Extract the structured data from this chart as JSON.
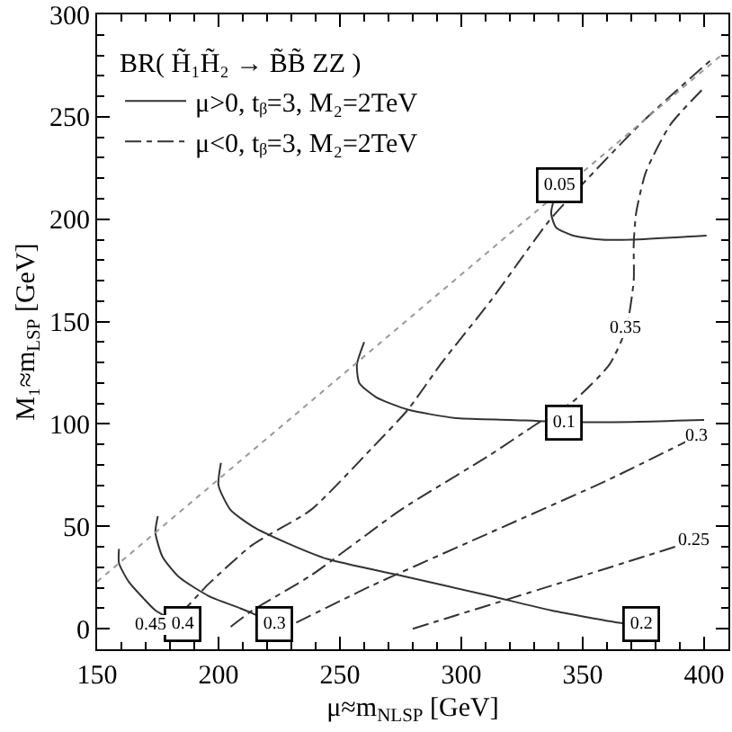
{
  "chart_data": {
    "type": "line",
    "xlabel": "μ≈m$_{NLSP}$ [GeV]",
    "ylabel": "M₁≈m$_{LSP}$ [GeV]",
    "legend_title": "BR( H̃₁H̃₂ → B̃B̃ ZZ )",
    "legend": "top left",
    "xlim": [
      150,
      410
    ],
    "ylim": [
      -10,
      300
    ],
    "xticks": [
      150,
      {
        "value": 160,
        "label": null
      },
      {
        "value": 170,
        "label": null
      },
      {
        "value": 180,
        "label": null
      },
      {
        "value": 190,
        "label": null
      },
      200,
      {
        "value": 210,
        "label": null
      },
      {
        "value": 220,
        "label": null
      },
      {
        "value": 230,
        "label": null
      },
      {
        "value": 240,
        "label": null
      },
      250,
      {
        "value": 260,
        "label": null
      },
      {
        "value": 270,
        "label": null
      },
      {
        "value": 280,
        "label": null
      },
      {
        "value": 290,
        "label": null
      },
      300,
      {
        "value": 310,
        "label": null
      },
      {
        "value": 320,
        "label": null
      },
      {
        "value": 330,
        "label": null
      },
      {
        "value": 340,
        "label": null
      },
      350,
      {
        "value": 360,
        "label": null
      },
      {
        "value": 370,
        "label": null
      },
      {
        "value": 380,
        "label": null
      },
      {
        "value": 390,
        "label": null
      },
      400
    ],
    "yticks": [
      0,
      {
        "value": 10,
        "label": null
      },
      {
        "value": 20,
        "label": null
      },
      {
        "value": 30,
        "label": null
      },
      {
        "value": 40,
        "label": null
      },
      50,
      {
        "value": 60,
        "label": null
      },
      {
        "value": 70,
        "label": null
      },
      {
        "value": 80,
        "label": null
      },
      {
        "value": 90,
        "label": null
      },
      100,
      {
        "value": 110,
        "label": null
      },
      {
        "value": 120,
        "label": null
      },
      {
        "value": 130,
        "label": null
      },
      {
        "value": 140,
        "label": null
      },
      150,
      {
        "value": 160,
        "label": null
      },
      {
        "value": 170,
        "label": null
      },
      {
        "value": 180,
        "label": null
      },
      {
        "value": 190,
        "label": null
      },
      200,
      {
        "value": 210,
        "label": null
      },
      {
        "value": 220,
        "label": null
      },
      {
        "value": 230,
        "label": null
      },
      {
        "value": 240,
        "label": null
      },
      250,
      {
        "value": 260,
        "label": null
      },
      {
        "value": 270,
        "label": null
      },
      {
        "value": 280,
        "label": null
      },
      {
        "value": 290,
        "label": null
      },
      300
    ],
    "series": [
      {
        "name": "μ>0, tᵦ=3, M₂=2TeV",
        "color": "#333333",
        "line_style": "solid",
        "x": [
          159,
          159,
          163,
          169,
          174,
          185
        ],
        "values": [
          39,
          32,
          23,
          15,
          9,
          2
        ]
      },
      {
        "color": "#333333",
        "line_style": "solid",
        "x": [
          175,
          174,
          177,
          184,
          196,
          209,
          215,
          223
        ],
        "values": [
          55,
          47,
          35,
          25,
          16,
          10,
          7,
          2
        ]
      },
      {
        "color": "#333333",
        "line_style": "solid",
        "x": [
          201,
          200,
          205,
          214,
          228,
          245,
          275,
          312,
          337,
          365,
          374
        ],
        "values": [
          81,
          70,
          58,
          50,
          42,
          34,
          26,
          16,
          9,
          3,
          2
        ]
      },
      {
        "color": "#333333",
        "line_style": "solid",
        "x": [
          260,
          257,
          258,
          265,
          278,
          297,
          320,
          342,
          370,
          400
        ],
        "values": [
          140,
          129,
          120,
          113,
          107,
          103,
          102,
          101,
          101,
          102
        ]
      },
      {
        "color": "#333333",
        "line_style": "solid",
        "x": [
          340,
          337,
          339,
          346,
          358,
          370,
          401
        ],
        "values": [
          217,
          203,
          196,
          192,
          190,
          190,
          192
        ]
      },
      {
        "name": "μ<0, tᵦ=3, M₂=2TeV",
        "color": "#333333",
        "line_style": "dashdot",
        "x": [
          172,
          180,
          196,
          214,
          238,
          263,
          278,
          292,
          312,
          336,
          349,
          375,
          404
        ],
        "values": [
          2,
          3,
          22,
          41,
          58,
          88,
          107,
          130,
          160,
          199,
          216,
          248,
          279
        ]
      },
      {
        "color": "#333333",
        "line_style": "dashdot",
        "x": [
          205,
          214,
          238,
          275,
          312,
          331,
          346,
          361,
          368,
          371,
          371,
          372,
          376,
          386,
          399
        ],
        "values": [
          1,
          9,
          26,
          58,
          85,
          100,
          111,
          129,
          147,
          170,
          188,
          203,
          223,
          246,
          263
        ]
      },
      {
        "color": "#333333",
        "line_style": "dashdot",
        "x": [
          232,
          263,
          312,
          361,
          397
        ],
        "values": [
          3,
          21,
          47,
          73,
          94
        ]
      },
      {
        "color": "#333333",
        "line_style": "dashdot",
        "x": [
          280,
          337,
          396
        ],
        "values": [
          0,
          21,
          43
        ]
      },
      {
        "color": "#999999",
        "line_style": "dotted",
        "x": [
          150,
          407
        ],
        "values": [
          23,
          280
        ]
      }
    ],
    "annotations": [
      {
        "text": "0.4",
        "x": 185,
        "y": 2
      },
      {
        "text": "0.3",
        "x": 223,
        "y": 2
      },
      {
        "text": "0.2",
        "x": 374,
        "y": 2
      },
      {
        "text": "0.1",
        "x": 342,
        "y": 101
      },
      {
        "text": "0.05",
        "x": 340,
        "y": 217
      },
      {
        "text": "0.45",
        "x": 172,
        "y": 2
      },
      {
        "text": "0.35",
        "x": 368,
        "y": 147
      },
      {
        "text": "0.3",
        "x": 397,
        "y": 94
      },
      {
        "text": "0.25",
        "x": 396,
        "y": 43
      }
    ]
  }
}
